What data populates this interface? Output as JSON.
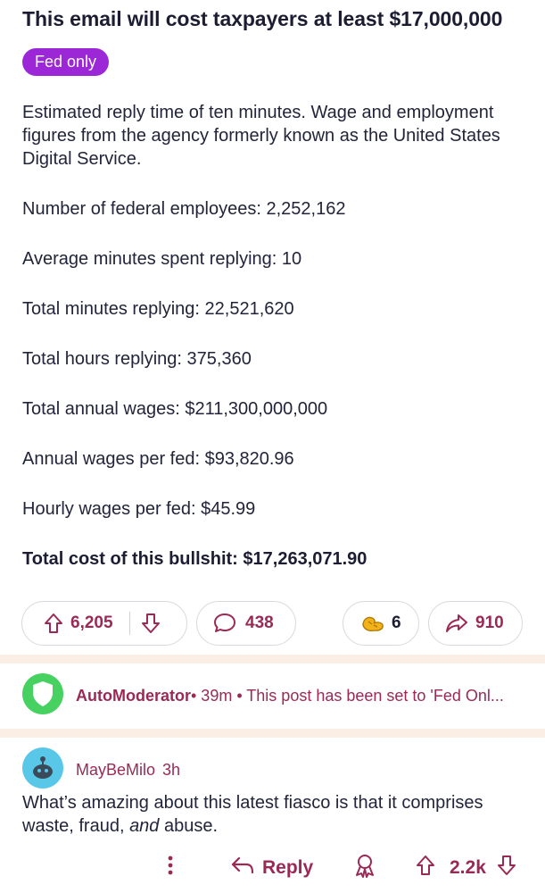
{
  "post": {
    "title": "This email will cost taxpayers at least $17,000,000",
    "flair": "Fed only",
    "intro": "Estimated reply time of ten minutes. Wage and employment figures from the agency formerly known as the United States Digital Service.",
    "stats": [
      "Number of federal employees: 2,252,162",
      "Average minutes spent replying: 10",
      "Total minutes replying: 22,521,620",
      "Total hours replying: 375,360",
      "Total annual wages: $211,300,000,000",
      "Annual wages per fed: $93,820.96",
      "Hourly wages per fed: $45.99"
    ],
    "total": "Total cost of this bullshit: $17,263,071.90"
  },
  "actions": {
    "upvotes": "6,205",
    "comments": "438",
    "awards": "6",
    "shares": "910"
  },
  "automod": {
    "name": "AutoModerator",
    "meta": " • 39m • This post has been set to 'Fed Onl..."
  },
  "comment": {
    "user": "MayBeMilo",
    "time": "3h",
    "text_before": "What’s amazing about this latest fiasco is that it comprises waste, fraud, ",
    "text_italic": "and",
    "text_after": " abuse.",
    "reply_label": "Reply",
    "votes": "2.2k"
  },
  "colors": {
    "accent": "#9a2a55",
    "flair_bg": "#9c27d6",
    "divider": "#fbeee4"
  }
}
